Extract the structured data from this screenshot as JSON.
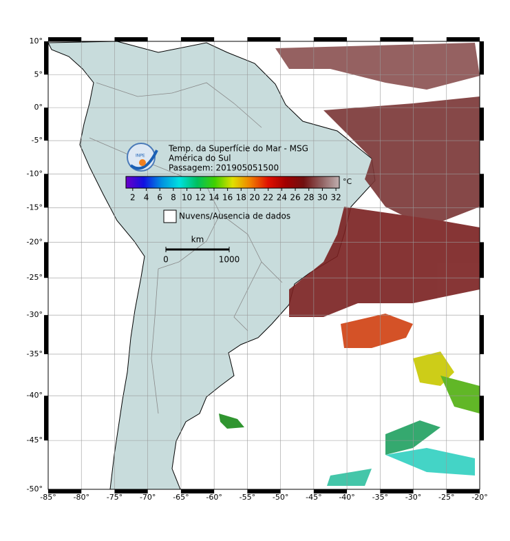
{
  "map": {
    "lonlim": [
      -85,
      -20
    ],
    "latlim": [
      -50,
      10
    ],
    "lon_ticks": [
      {
        "value": -85,
        "label": "-85°"
      },
      {
        "value": -80,
        "label": "-80°"
      },
      {
        "value": -75,
        "label": "-75°"
      },
      {
        "value": -70,
        "label": "-70°"
      },
      {
        "value": -65,
        "label": "-65°"
      },
      {
        "value": -60,
        "label": "-60°"
      },
      {
        "value": -55,
        "label": "-55°"
      },
      {
        "value": -50,
        "label": "-50°"
      },
      {
        "value": -45,
        "label": "-45°"
      },
      {
        "value": -40,
        "label": "-40°"
      },
      {
        "value": -35,
        "label": "-35°"
      },
      {
        "value": -30,
        "label": "-30°"
      },
      {
        "value": -25,
        "label": "-25°"
      },
      {
        "value": -20,
        "label": "-20°"
      }
    ],
    "lat_ticks": [
      {
        "value": 10,
        "label": "10°"
      },
      {
        "value": 5,
        "label": "5°"
      },
      {
        "value": 0,
        "label": "0°"
      },
      {
        "value": -5,
        "label": "-5°"
      },
      {
        "value": -10,
        "label": "-10°"
      },
      {
        "value": -15,
        "label": "-15°"
      },
      {
        "value": -20,
        "label": "-20°"
      },
      {
        "value": -25,
        "label": "-25°"
      },
      {
        "value": -30,
        "label": "-30°"
      },
      {
        "value": -35,
        "label": "-35°"
      },
      {
        "value": -40,
        "label": "-40°"
      },
      {
        "value": -45,
        "label": "-45°"
      },
      {
        "value": -50,
        "label": "-50°"
      }
    ],
    "grid": true
  },
  "legend": {
    "logo": "INPE",
    "title": "Temp. da Superfície do Mar - MSG",
    "region": "América do Sul",
    "pass": "Passagem: 201905051500",
    "colorbar": {
      "clim": [
        1,
        32.5
      ],
      "ticks": [
        2,
        4,
        6,
        8,
        10,
        12,
        14,
        16,
        18,
        20,
        22,
        24,
        26,
        28,
        30,
        32
      ],
      "unit": "°C",
      "colors": [
        "#6a00c8",
        "#1010e0",
        "#0090e0",
        "#00e0e0",
        "#00c060",
        "#40d000",
        "#e0e000",
        "#f08000",
        "#e01000",
        "#a00000",
        "#701010",
        "#906060",
        "#c0b0b0"
      ]
    },
    "clouds": "Nuvens/Ausencia de dados",
    "scale": {
      "unit": "km",
      "ticks": [
        0,
        1000
      ]
    }
  }
}
